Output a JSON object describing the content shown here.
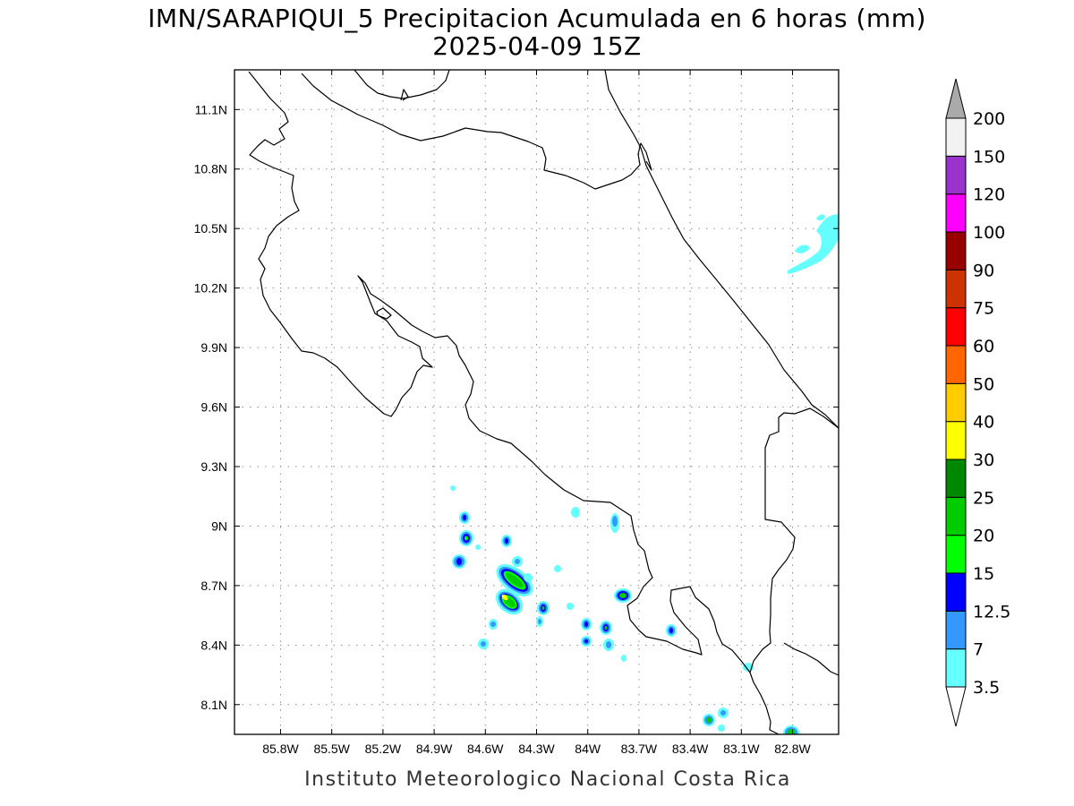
{
  "header": {
    "title": "IMN/SARAPIQUI_5 Precipitacion Acumulada en 6 horas (mm)",
    "subtitle": "2025-04-09 15Z"
  },
  "footer": {
    "credit": "Instituto Meteorologico Nacional Costa Rica"
  },
  "map": {
    "lon_range": [
      -86.07,
      -82.53
    ],
    "lat_range": [
      7.95,
      11.3
    ],
    "lon_ticks": [
      "85.8W",
      "85.5W",
      "85.2W",
      "84.9W",
      "84.6W",
      "84.3W",
      "84W",
      "83.7W",
      "83.4W",
      "83.1W",
      "82.8W"
    ],
    "lat_ticks": [
      "11.1N",
      "10.8N",
      "10.5N",
      "10.2N",
      "9.9N",
      "9.6N",
      "9.3N",
      "9N",
      "8.7N",
      "8.4N",
      "8.1N"
    ],
    "grid": "dotted"
  },
  "colorbar": {
    "labels": [
      "3.5",
      "7",
      "12.5",
      "15",
      "20",
      "25",
      "30",
      "40",
      "50",
      "60",
      "75",
      "90",
      "100",
      "120",
      "150",
      "200"
    ],
    "colors": [
      "#ffffff",
      "#66ffff",
      "#3399ff",
      "#0000ff",
      "#00ff00",
      "#00cc00",
      "#008800",
      "#ffff00",
      "#ffcc00",
      "#ff6600",
      "#ff0000",
      "#cc3300",
      "#990000",
      "#ff00ff",
      "#9933cc",
      "#f2f2f2",
      "#aaaaaa"
    ],
    "lower_end": "open",
    "upper_end": "filled"
  }
}
